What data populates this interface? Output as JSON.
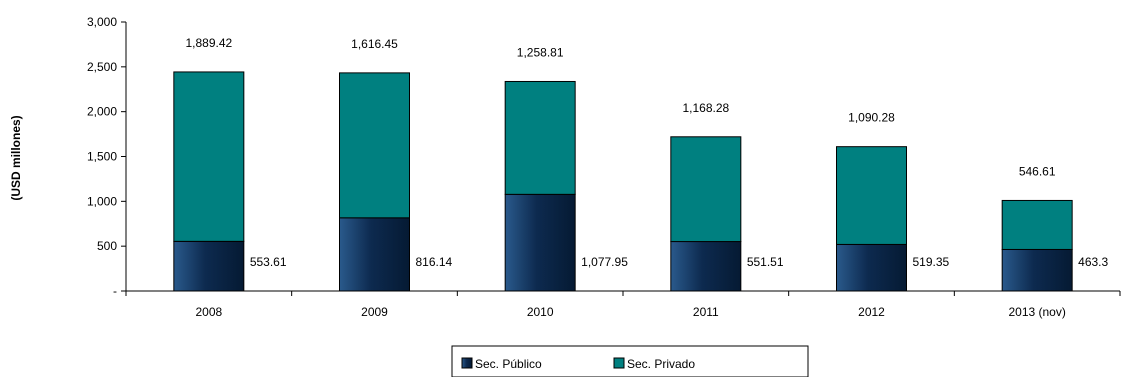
{
  "chart_data": {
    "type": "bar",
    "stacked": true,
    "categories": [
      "2008",
      "2009",
      "2010",
      "2011",
      "2012",
      "2013 (nov)"
    ],
    "series": [
      {
        "name": "Sec. Público",
        "color": "#0d2a4f",
        "values": [
          553.61,
          816.14,
          1077.95,
          551.51,
          519.35,
          463.3
        ],
        "labels": [
          "553.61",
          "816.14",
          "1,077.95",
          "551.51",
          "519.35",
          "463.3"
        ]
      },
      {
        "name": "Sec. Privado",
        "color": "#008080",
        "values": [
          1889.42,
          1616.45,
          1258.81,
          1168.28,
          1090.28,
          546.61
        ],
        "labels": [
          "1,889.42",
          "1,616.45",
          "1,258.81",
          "1,168.28",
          "1,090.28",
          "546.61"
        ]
      }
    ],
    "ylabel": "(USD millones)",
    "ylim": [
      0,
      3000
    ],
    "yticks": [
      0,
      500,
      1000,
      1500,
      2000,
      2500,
      3000
    ],
    "ytick_labels": [
      "-",
      "500",
      "1,000",
      "1,500",
      "2,000",
      "2,500",
      "3,000"
    ],
    "grid": false,
    "legend": "bottom"
  }
}
